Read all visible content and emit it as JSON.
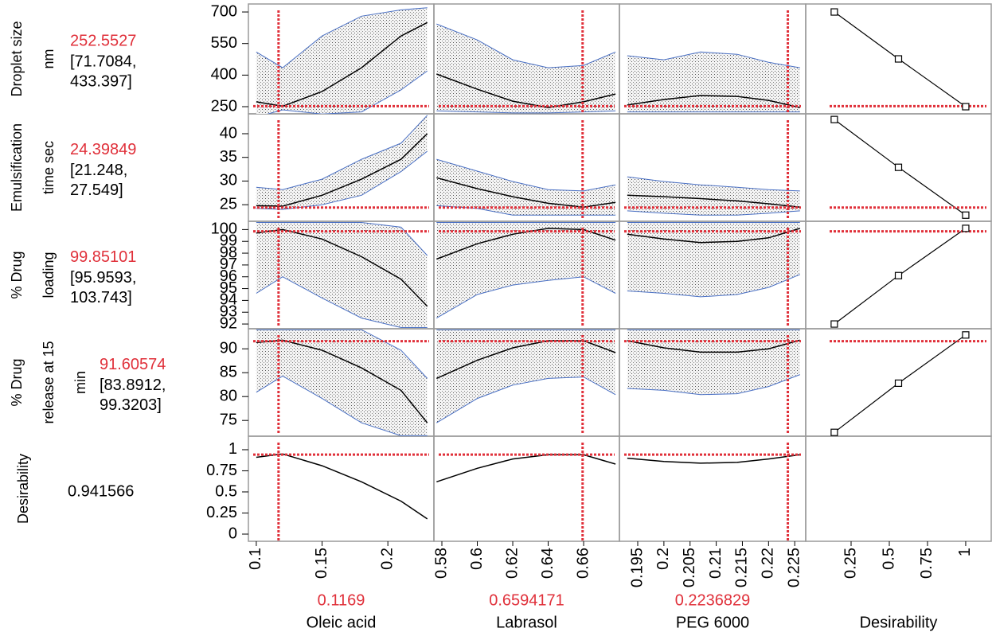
{
  "factors": [
    {
      "name": "Oleic acid",
      "current": 0.1169,
      "xlim": [
        0.094,
        0.235
      ],
      "xticks": [
        0.1,
        0.15,
        0.2
      ],
      "x": [
        0.1,
        0.12,
        0.15,
        0.18,
        0.21,
        0.23
      ]
    },
    {
      "name": "Labrasol",
      "current": 0.6594171,
      "xlim": [
        0.5755,
        0.6802
      ],
      "xticks": [
        0.58,
        0.6,
        0.62,
        0.64,
        0.66
      ],
      "x": [
        0.577,
        0.6,
        0.62,
        0.64,
        0.66,
        0.678
      ]
    },
    {
      "name": "PEG 6000",
      "current": 0.2236829,
      "xlim": [
        0.1915,
        0.2271
      ],
      "xticks": [
        0.195,
        0.2,
        0.205,
        0.21,
        0.215,
        0.22,
        0.225
      ],
      "x": [
        0.193,
        0.2,
        0.207,
        0.214,
        0.22,
        0.226
      ]
    }
  ],
  "desirability_axis": {
    "name": "Desirability",
    "xlim": [
      -0.047,
      1.167
    ],
    "xticks": [
      0.25,
      0.5,
      0.75,
      1
    ]
  },
  "responses": [
    {
      "name_lines": [
        "Droplet size",
        "nm"
      ],
      "current": 252.5527,
      "ci_labels": [
        "[71.7084,",
        "433.397]"
      ],
      "ylim": [
        216,
        738
      ],
      "yticks": [
        250,
        400,
        550,
        700
      ],
      "curves": [
        {
          "mean": [
            273,
            252,
            322,
            435,
            586,
            650
          ],
          "lower": [
            200,
            235,
            215,
            225,
            330,
            420
          ],
          "upper": [
            510,
            435,
            586,
            680,
            710,
            720
          ]
        },
        {
          "mean": [
            405,
            333,
            276,
            246,
            273,
            310
          ],
          "lower": [
            230,
            225,
            220,
            220,
            225,
            230
          ],
          "upper": [
            643,
            567,
            473,
            435,
            446,
            510
          ]
        },
        {
          "mean": [
            258,
            284,
            303,
            299,
            280,
            246
          ],
          "lower": [
            225,
            225,
            225,
            225,
            225,
            225
          ],
          "upper": [
            492,
            473,
            510,
            499,
            461,
            435
          ]
        }
      ],
      "desirability_fn": {
        "x": [
          0.14,
          0.56,
          1
        ],
        "y": [
          700,
          477,
          250
        ]
      }
    },
    {
      "name_lines": [
        "Emulsification",
        "time sec"
      ],
      "current": 24.39849,
      "ci_labels": [
        "[21.248,",
        "27.549]"
      ],
      "ylim": [
        21.5,
        44.2
      ],
      "yticks": [
        25,
        30,
        35,
        40
      ],
      "curves": [
        {
          "mean": [
            24.8,
            24.7,
            27,
            30.4,
            34.6,
            40
          ],
          "lower": [
            24.2,
            24,
            25,
            27,
            32,
            36.3
          ],
          "upper": [
            28.7,
            28.2,
            30.4,
            34.6,
            38,
            43.9
          ]
        },
        {
          "mean": [
            30.7,
            28.4,
            26.7,
            25.3,
            24.5,
            25.5
          ],
          "lower": [
            24.8,
            24.2,
            22.8,
            22.8,
            22.8,
            22.8
          ],
          "upper": [
            34.6,
            32.1,
            29.9,
            28.2,
            27.9,
            29.2
          ]
        },
        {
          "mean": [
            27,
            26.7,
            26.3,
            25.8,
            25.2,
            24.5
          ],
          "lower": [
            23.7,
            23.2,
            22.8,
            22.8,
            23.2,
            23.7
          ],
          "upper": [
            30.9,
            29.9,
            29.2,
            28.7,
            28.2,
            27.9
          ]
        }
      ],
      "desirability_fn": {
        "x": [
          0.14,
          0.56,
          1
        ],
        "y": [
          43,
          32.9,
          22.8
        ]
      }
    },
    {
      "name_lines": [
        "% Drug",
        "loading"
      ],
      "current": 99.85101,
      "ci_labels": [
        "[95.9593,",
        "103.743]"
      ],
      "ylim": [
        91.6,
        100.7
      ],
      "yticks": [
        92,
        93,
        94,
        95,
        96,
        97,
        98,
        99,
        100
      ],
      "curves": [
        {
          "mean": [
            99.7,
            100,
            99.2,
            97.7,
            95.8,
            93.5
          ],
          "lower": [
            94.6,
            96,
            94.2,
            92.5,
            91.7,
            91.7
          ],
          "upper": [
            100.6,
            100.6,
            100.6,
            100.6,
            100.2,
            97.8
          ]
        },
        {
          "mean": [
            97.5,
            98.8,
            99.6,
            100.1,
            100,
            99.1
          ],
          "lower": [
            92.5,
            94.5,
            95.3,
            95.7,
            96,
            94.6
          ],
          "upper": [
            100.6,
            100.6,
            100.6,
            100.6,
            100.6,
            100.6
          ]
        },
        {
          "mean": [
            99.6,
            99.2,
            98.9,
            99,
            99.3,
            100.1
          ],
          "lower": [
            94.8,
            94.6,
            94.3,
            94.5,
            95.1,
            96.2
          ],
          "upper": [
            100.6,
            100.6,
            100.6,
            100.6,
            100.6,
            100.6
          ]
        }
      ],
      "desirability_fn": {
        "x": [
          0.14,
          0.56,
          1
        ],
        "y": [
          92,
          96.1,
          100.1
        ]
      }
    },
    {
      "name_lines": [
        "% Drug",
        "release at 15",
        "min"
      ],
      "current": 91.60574,
      "ci_labels": [
        "[83.8912,",
        "99.3203]"
      ],
      "ylim": [
        71.7,
        94.2
      ],
      "yticks": [
        75,
        80,
        85,
        90
      ],
      "curves": [
        {
          "mean": [
            91.3,
            91.8,
            89.7,
            86,
            81.3,
            74.5
          ],
          "lower": [
            80.9,
            84.3,
            79.6,
            74.5,
            71.8,
            71.8
          ],
          "upper": [
            94,
            94,
            94,
            94,
            89.7,
            83.8
          ]
        },
        {
          "mean": [
            83.8,
            87.6,
            90.2,
            91.7,
            91.7,
            89.2
          ],
          "lower": [
            74.5,
            79.6,
            82.4,
            83.8,
            84.1,
            80.4
          ],
          "upper": [
            94,
            94,
            94,
            94,
            94,
            94
          ]
        },
        {
          "mean": [
            91.7,
            90.2,
            89.3,
            89.3,
            90,
            91.8
          ],
          "lower": [
            81.7,
            81.3,
            80.4,
            80.6,
            82.1,
            84.6
          ],
          "upper": [
            94,
            94,
            94,
            94,
            94,
            94
          ]
        }
      ],
      "desirability_fn": {
        "x": [
          0.14,
          0.56,
          1
        ],
        "y": [
          72.5,
          82.8,
          92.9
        ]
      }
    }
  ],
  "desirability": {
    "name": "Desirability",
    "current": 0.941566,
    "ylim": [
      -0.085,
      1.16
    ],
    "yticks": [
      0,
      0.25,
      0.5,
      0.75,
      1
    ],
    "curves": [
      {
        "mean": [
          0.91,
          0.95,
          0.81,
          0.62,
          0.39,
          0.18
        ]
      },
      {
        "mean": [
          0.62,
          0.78,
          0.89,
          0.94,
          0.94,
          0.83
        ]
      },
      {
        "mean": [
          0.9,
          0.86,
          0.84,
          0.85,
          0.89,
          0.94
        ]
      }
    ]
  }
}
